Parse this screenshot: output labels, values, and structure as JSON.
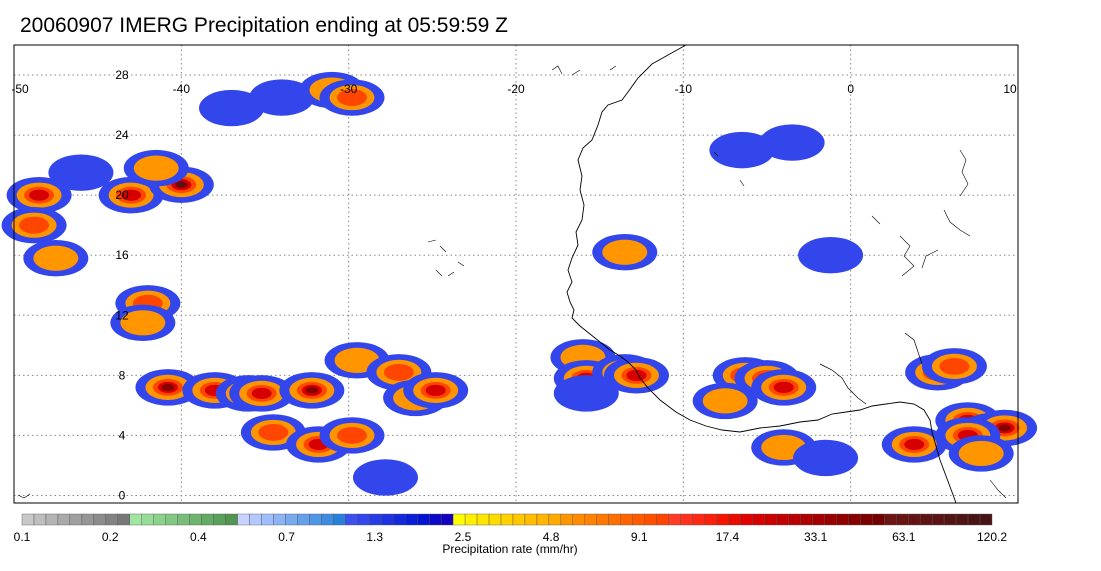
{
  "title": "20060907 IMERG Precipitation ending at 05:59:59 Z",
  "map": {
    "lon_range": [
      -50,
      10
    ],
    "lat_range": [
      -0.5,
      30
    ],
    "lon_ticks": [
      {
        "value": -50,
        "label": "-50"
      },
      {
        "value": -40,
        "label": "-40"
      },
      {
        "value": -30,
        "label": "-30"
      },
      {
        "value": -20,
        "label": "-20"
      },
      {
        "value": -10,
        "label": "-10"
      },
      {
        "value": 0,
        "label": "0"
      },
      {
        "value": 10,
        "label": "10"
      }
    ],
    "lat_ticks": [
      {
        "value": 0,
        "label": "0"
      },
      {
        "value": 4,
        "label": "4"
      },
      {
        "value": 8,
        "label": "8"
      },
      {
        "value": 12,
        "label": "12"
      },
      {
        "value": 16,
        "label": "16"
      },
      {
        "value": 20,
        "label": "20"
      },
      {
        "value": 24,
        "label": "24"
      },
      {
        "value": 28,
        "label": "28"
      }
    ],
    "gridlines": "dotted",
    "coastline_color": "#000000",
    "precip_cells": [
      {
        "lon": -48.5,
        "lat": 20.0,
        "intensity": 9.1
      },
      {
        "lon": -48.8,
        "lat": 18.0,
        "intensity": 4.8
      },
      {
        "lon": -47.5,
        "lat": 15.8,
        "intensity": 2.5
      },
      {
        "lon": -46.0,
        "lat": 21.5,
        "intensity": 1.3
      },
      {
        "lon": -43.0,
        "lat": 20.0,
        "intensity": 9.1
      },
      {
        "lon": -40.0,
        "lat": 20.7,
        "intensity": 33.1
      },
      {
        "lon": -41.5,
        "lat": 21.8,
        "intensity": 2.5
      },
      {
        "lon": -42.0,
        "lat": 12.8,
        "intensity": 4.8
      },
      {
        "lon": -42.3,
        "lat": 11.5,
        "intensity": 2.5
      },
      {
        "lon": -40.8,
        "lat": 7.2,
        "intensity": 17.4
      },
      {
        "lon": -38.0,
        "lat": 7.0,
        "intensity": 9.1
      },
      {
        "lon": -36.0,
        "lat": 6.8,
        "intensity": 4.8
      },
      {
        "lon": -35.2,
        "lat": 6.8,
        "intensity": 9.1
      },
      {
        "lon": -32.2,
        "lat": 7.0,
        "intensity": 17.4
      },
      {
        "lon": -34.5,
        "lat": 4.2,
        "intensity": 4.8
      },
      {
        "lon": -31.8,
        "lat": 3.4,
        "intensity": 9.1
      },
      {
        "lon": -29.8,
        "lat": 4.0,
        "intensity": 4.8
      },
      {
        "lon": -29.5,
        "lat": 9.0,
        "intensity": 2.5
      },
      {
        "lon": -27.0,
        "lat": 8.2,
        "intensity": 4.8
      },
      {
        "lon": -26.0,
        "lat": 6.5,
        "intensity": 2.5
      },
      {
        "lon": -24.8,
        "lat": 7.0,
        "intensity": 9.1
      },
      {
        "lon": -27.8,
        "lat": 1.2,
        "intensity": 1.3
      },
      {
        "lon": -34.0,
        "lat": 26.5,
        "intensity": 1.3
      },
      {
        "lon": -31.0,
        "lat": 27.0,
        "intensity": 2.5
      },
      {
        "lon": -29.8,
        "lat": 26.5,
        "intensity": 4.8
      },
      {
        "lon": -37.0,
        "lat": 25.8,
        "intensity": 0.7
      },
      {
        "lon": -16.0,
        "lat": 9.2,
        "intensity": 2.5
      },
      {
        "lon": -15.8,
        "lat": 7.8,
        "intensity": 9.1
      },
      {
        "lon": -13.5,
        "lat": 8.2,
        "intensity": 4.8
      },
      {
        "lon": -12.8,
        "lat": 8.0,
        "intensity": 9.1
      },
      {
        "lon": -15.8,
        "lat": 6.8,
        "intensity": 1.3
      },
      {
        "lon": -13.5,
        "lat": 16.2,
        "intensity": 2.5
      },
      {
        "lon": -6.3,
        "lat": 8.0,
        "intensity": 4.8
      },
      {
        "lon": -5.0,
        "lat": 7.8,
        "intensity": 17.4
      },
      {
        "lon": -4.0,
        "lat": 7.2,
        "intensity": 9.1
      },
      {
        "lon": -7.5,
        "lat": 6.3,
        "intensity": 2.5
      },
      {
        "lon": -4.0,
        "lat": 3.2,
        "intensity": 2.5
      },
      {
        "lon": -1.5,
        "lat": 2.5,
        "intensity": 1.3
      },
      {
        "lon": 5.2,
        "lat": 8.2,
        "intensity": 9.1
      },
      {
        "lon": 6.2,
        "lat": 8.6,
        "intensity": 4.8
      },
      {
        "lon": 7.0,
        "lat": 5.0,
        "intensity": 17.4
      },
      {
        "lon": 8.5,
        "lat": 4.3,
        "intensity": 33.1
      },
      {
        "lon": 9.2,
        "lat": 4.5,
        "intensity": 17.4
      },
      {
        "lon": 7.0,
        "lat": 4.0,
        "intensity": 9.1
      },
      {
        "lon": 3.8,
        "lat": 3.4,
        "intensity": 9.1
      },
      {
        "lon": 7.8,
        "lat": 2.8,
        "intensity": 2.5
      },
      {
        "lon": -6.5,
        "lat": 23.0,
        "intensity": 0.7
      },
      {
        "lon": -3.5,
        "lat": 23.5,
        "intensity": 0.4
      },
      {
        "lon": -1.2,
        "lat": 16.0,
        "intensity": 1.3
      }
    ]
  },
  "colorbar": {
    "label": "Precipitation rate (mm/hr)",
    "colors": [
      "#c8c8c8",
      "#bebebe",
      "#b4b4b4",
      "#aaaaaa",
      "#a0a0a0",
      "#969696",
      "#8c8c8c",
      "#828282",
      "#787878",
      "#a0e6a0",
      "#96dc96",
      "#8cd28c",
      "#82c882",
      "#78be78",
      "#6eb46e",
      "#64aa64",
      "#5aa05a",
      "#509650",
      "#c8d2ff",
      "#b4c8ff",
      "#a0beff",
      "#8cb4f5",
      "#78aaf0",
      "#64a0eb",
      "#5096e6",
      "#3c8ce1",
      "#2882dc",
      "#3c50f0",
      "#3246eb",
      "#283ce6",
      "#1e32e1",
      "#1428dc",
      "#0a1ed7",
      "#0014d2",
      "#0a0ac8",
      "#1400be",
      "#ffff00",
      "#fff000",
      "#ffe600",
      "#ffdc00",
      "#ffd200",
      "#ffc800",
      "#ffbe00",
      "#ffb400",
      "#ffaa00",
      "#ff9600",
      "#ff8c00",
      "#ff8200",
      "#ff7800",
      "#ff6e00",
      "#ff6400",
      "#ff5a00",
      "#ff5000",
      "#ff4600",
      "#ff3c28",
      "#ff321e",
      "#ff2814",
      "#ff1e0a",
      "#f51400",
      "#eb0a00",
      "#e10000",
      "#d70000",
      "#cd0000",
      "#c30000",
      "#b90000",
      "#af0000",
      "#a50000",
      "#9b0000",
      "#910000",
      "#870000",
      "#7d0000",
      "#730000",
      "#6e1414",
      "#691414",
      "#641414",
      "#5f1414",
      "#5a1414",
      "#551414",
      "#501414",
      "#4b1414",
      "#461414"
    ],
    "tick_labels": [
      "0.1",
      "0.2",
      "0.4",
      "0.7",
      "1.3",
      "2.5",
      "4.8",
      "9.1",
      "17.4",
      "33.1",
      "63.1",
      "120.2"
    ]
  }
}
